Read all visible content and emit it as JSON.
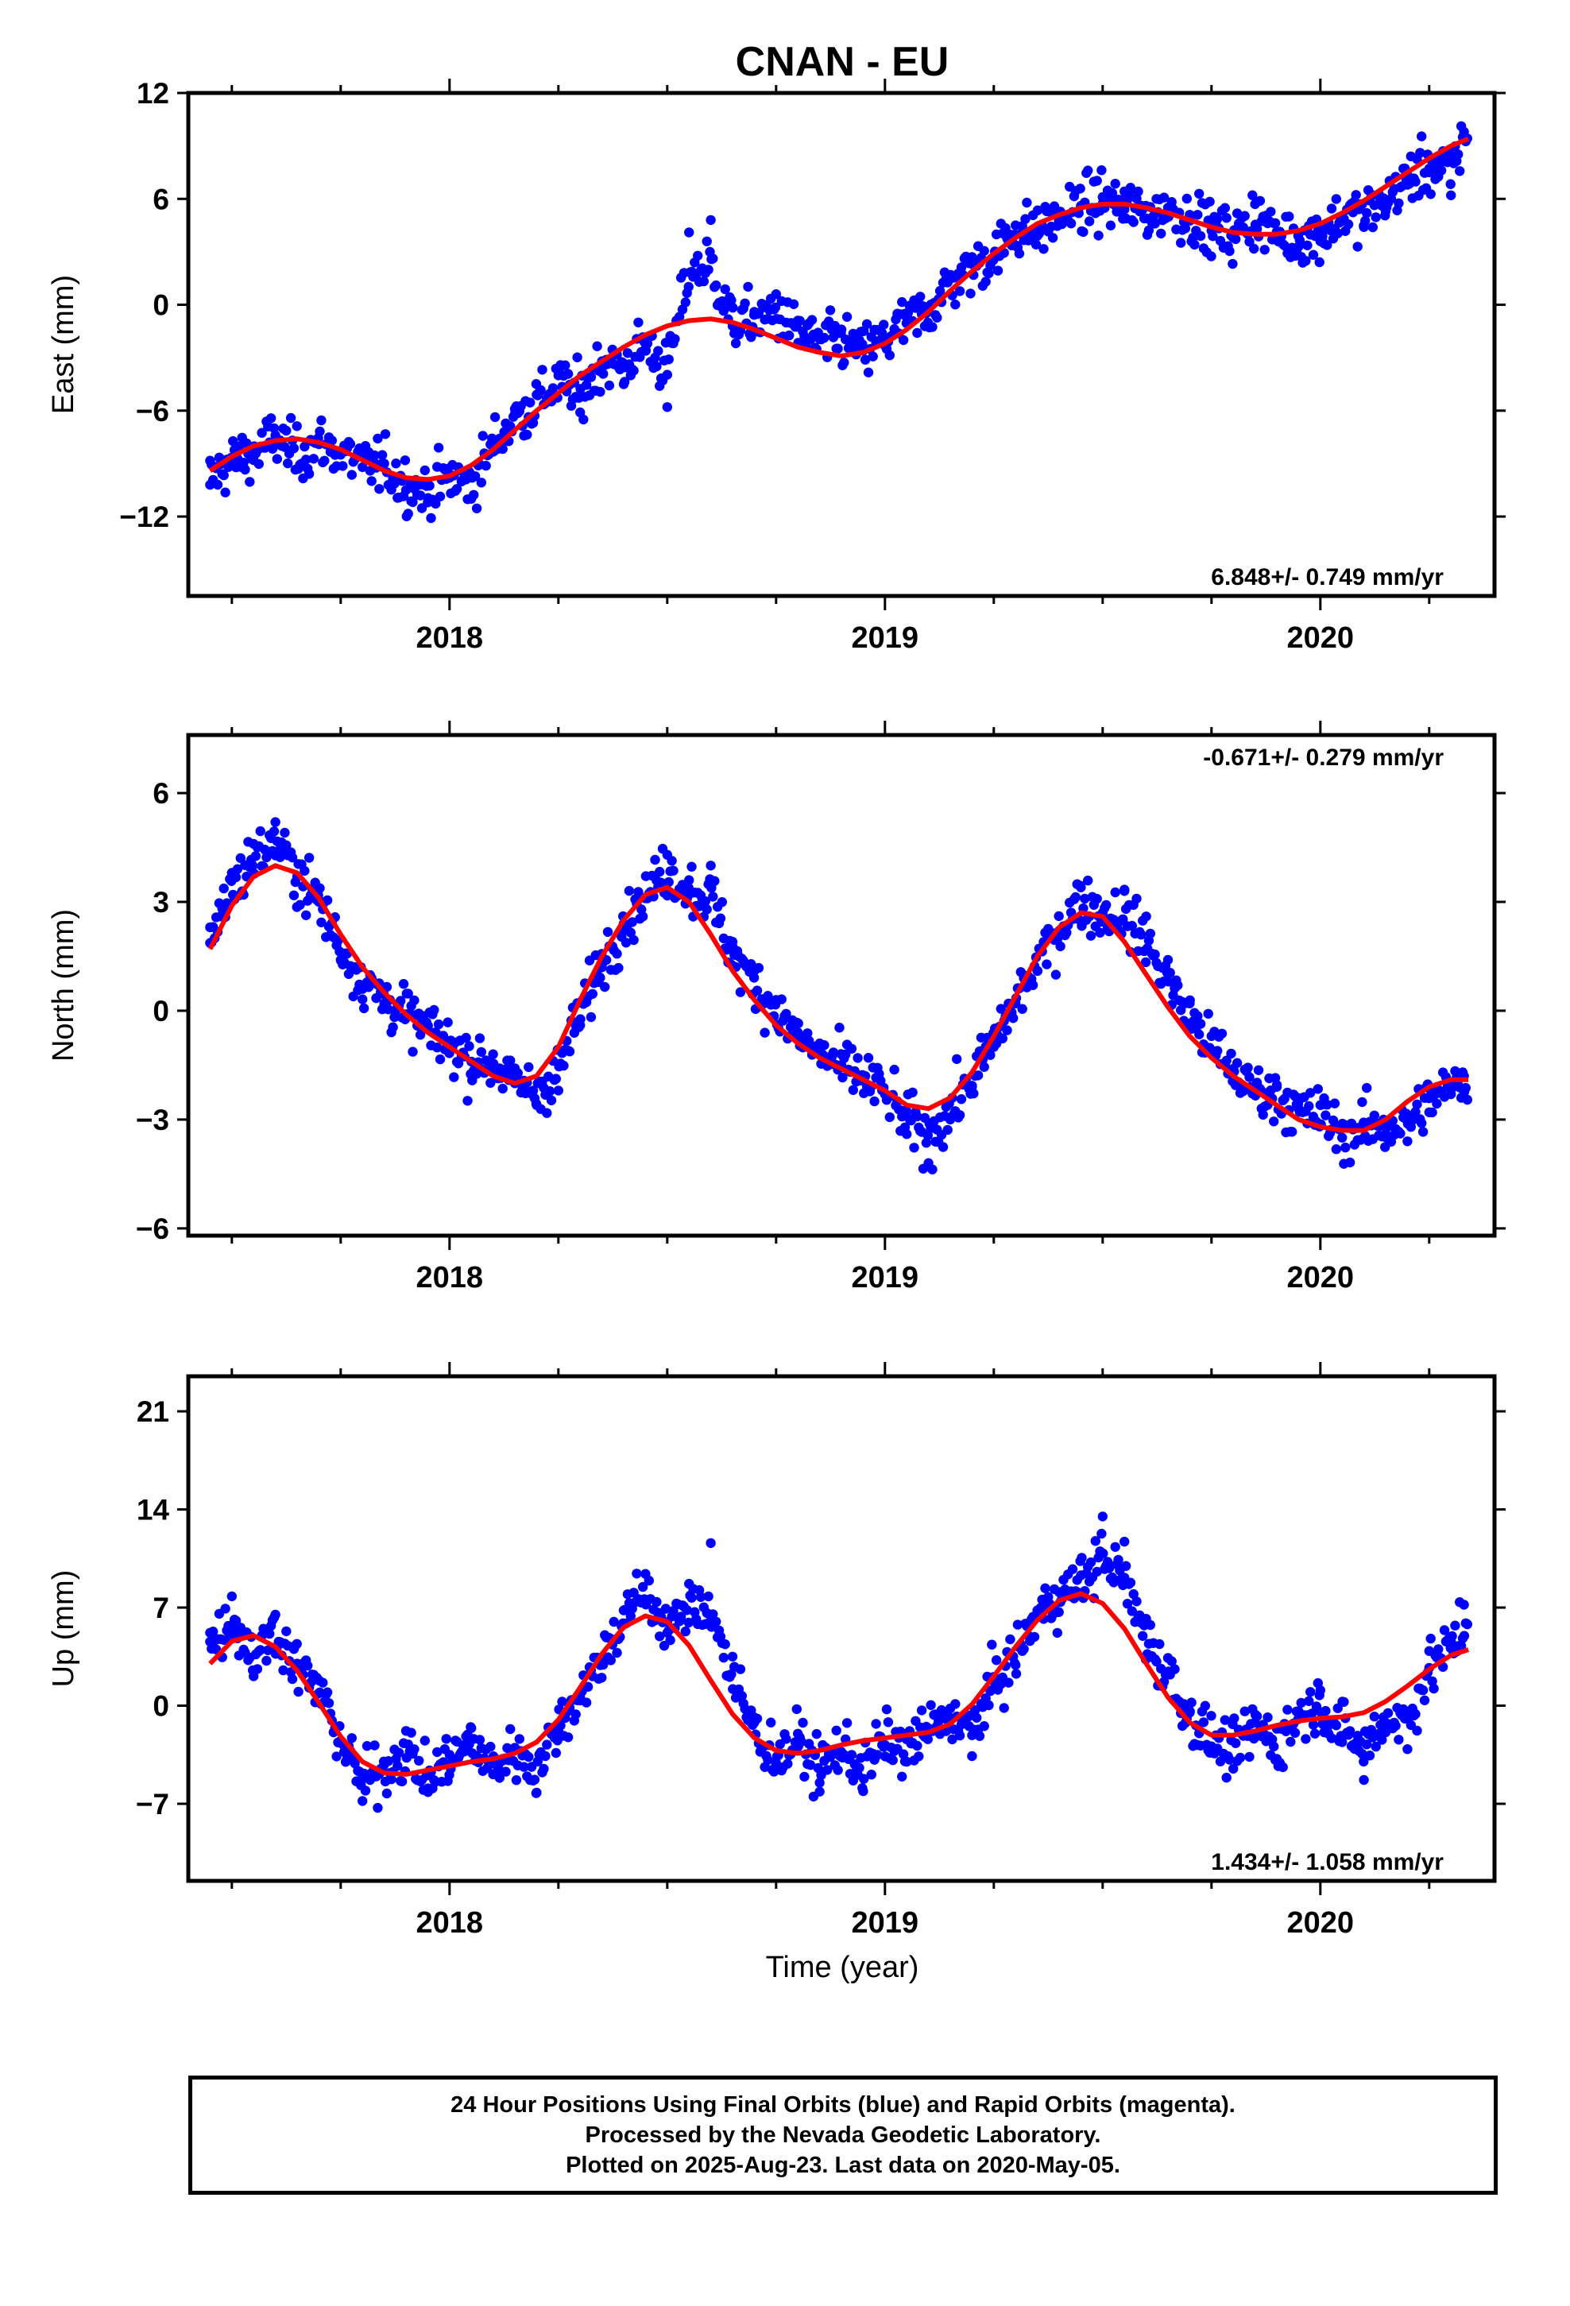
{
  "figure": {
    "title": "CNAN - EU",
    "x_axis_label": "Time (year)"
  },
  "colors": {
    "points": "#0000ff",
    "fit_curve": "#ff0000",
    "frame": "#000000"
  },
  "footer": {
    "line1": "24 Hour Positions Using Final Orbits (blue) and Rapid Orbits (magenta).",
    "line2": "Processed by the Nevada Geodetic Laboratory.",
    "line3": "Plotted on 2025-Aug-23. Last data on 2020-May-05."
  },
  "chart_data": [
    {
      "type": "scatter",
      "ylabel": "East (mm)",
      "xlim": [
        2017.4,
        2020.4
      ],
      "ylim": [
        -16.5,
        12
      ],
      "yticks": [
        12,
        6,
        0,
        -6,
        -12
      ],
      "ytick_labels": [
        "12",
        "6",
        "0",
        "−6",
        "−12"
      ],
      "xticks": [
        2018,
        2019,
        2020
      ],
      "xtick_labels": [
        "2018",
        "2019",
        "2020"
      ],
      "rate": "6.848+/- 0.749 mm/yr",
      "rate_position": "bottom-right",
      "series": [
        {
          "kind": "points",
          "x": [
            2017.45,
            2017.5,
            2017.55,
            2017.6,
            2017.65,
            2017.7,
            2017.75,
            2017.8,
            2017.85,
            2017.9,
            2017.95,
            2018.0,
            2018.05,
            2018.1,
            2018.15,
            2018.2,
            2018.25,
            2018.3,
            2018.35,
            2018.4,
            2018.45,
            2018.5,
            2018.55,
            2018.6,
            2018.65,
            2018.7,
            2018.75,
            2018.8,
            2018.85,
            2018.9,
            2018.95,
            2019.0,
            2019.05,
            2019.1,
            2019.15,
            2019.2,
            2019.25,
            2019.3,
            2019.35,
            2019.4,
            2019.45,
            2019.5,
            2019.55,
            2019.6,
            2019.65,
            2019.7,
            2019.75,
            2019.8,
            2019.85,
            2019.9,
            2019.95,
            2020.0,
            2020.05,
            2020.1,
            2020.15,
            2020.2,
            2020.25,
            2020.3,
            2020.33
          ],
          "y": [
            -10.2,
            -9.1,
            -8.8,
            -7.4,
            -9.3,
            -7.9,
            -8.5,
            -9.2,
            -9.0,
            -10.5,
            -11.2,
            -9.8,
            -11.0,
            -7.8,
            -5.9,
            -5.1,
            -4.0,
            -6.1,
            -3.2,
            -4.5,
            -2.5,
            -5.8,
            4.1,
            4.8,
            -1.2,
            -0.4,
            0.6,
            -0.9,
            -1.8,
            -1.4,
            -2.6,
            -1.9,
            -0.7,
            -0.3,
            1.6,
            2.3,
            2.7,
            4.5,
            3.9,
            4.8,
            5.6,
            6.1,
            5.4,
            4.9,
            5.5,
            5.1,
            4.2,
            3.8,
            5.7,
            4.0,
            3.3,
            3.6,
            4.9,
            4.4,
            5.3,
            6.8,
            7.5,
            6.2,
            9.8
          ]
        },
        {
          "kind": "fit",
          "x": [
            2017.45,
            2017.5,
            2017.55,
            2017.6,
            2017.65,
            2017.7,
            2017.75,
            2017.8,
            2017.85,
            2017.9,
            2017.95,
            2018.0,
            2018.05,
            2018.1,
            2018.15,
            2018.2,
            2018.25,
            2018.3,
            2018.35,
            2018.4,
            2018.45,
            2018.5,
            2018.55,
            2018.6,
            2018.65,
            2018.7,
            2018.75,
            2018.8,
            2018.85,
            2018.9,
            2018.95,
            2019.0,
            2019.05,
            2019.1,
            2019.15,
            2019.2,
            2019.25,
            2019.3,
            2019.35,
            2019.4,
            2019.45,
            2019.5,
            2019.55,
            2019.6,
            2019.65,
            2019.7,
            2019.75,
            2019.8,
            2019.85,
            2019.9,
            2019.95,
            2020.0,
            2020.05,
            2020.1,
            2020.15,
            2020.2,
            2020.25,
            2020.3,
            2020.34
          ],
          "y": [
            -9.4,
            -8.6,
            -8.0,
            -7.7,
            -7.6,
            -7.8,
            -8.2,
            -8.8,
            -9.4,
            -9.8,
            -9.9,
            -9.7,
            -9.1,
            -8.2,
            -7.1,
            -6.0,
            -5.0,
            -4.0,
            -3.2,
            -2.4,
            -1.7,
            -1.2,
            -0.9,
            -0.8,
            -1.0,
            -1.4,
            -1.9,
            -2.4,
            -2.7,
            -2.9,
            -2.7,
            -2.2,
            -1.4,
            -0.4,
            0.8,
            1.9,
            2.9,
            3.8,
            4.6,
            5.1,
            5.5,
            5.7,
            5.7,
            5.5,
            5.2,
            4.8,
            4.4,
            4.1,
            4.0,
            4.0,
            4.2,
            4.6,
            5.2,
            5.9,
            6.7,
            7.5,
            8.3,
            9.0,
            9.4
          ]
        }
      ]
    },
    {
      "type": "scatter",
      "ylabel": "North (mm)",
      "xlim": [
        2017.4,
        2020.4
      ],
      "ylim": [
        -6.2,
        7.6
      ],
      "yticks": [
        6,
        3,
        0,
        -3,
        -6
      ],
      "ytick_labels": [
        "6",
        "3",
        "0",
        "−3",
        "−6"
      ],
      "xticks": [
        2018,
        2019,
        2020
      ],
      "xtick_labels": [
        "2018",
        "2019",
        "2020"
      ],
      "rate": "-0.671+/- 0.279 mm/yr",
      "rate_position": "top-right",
      "series": [
        {
          "kind": "points",
          "x": [
            2017.45,
            2017.5,
            2017.55,
            2017.6,
            2017.65,
            2017.7,
            2017.75,
            2017.8,
            2017.85,
            2017.9,
            2017.95,
            2018.0,
            2018.05,
            2018.1,
            2018.15,
            2018.2,
            2018.25,
            2018.3,
            2018.35,
            2018.4,
            2018.45,
            2018.5,
            2018.55,
            2018.6,
            2018.65,
            2018.7,
            2018.75,
            2018.8,
            2018.85,
            2018.9,
            2018.95,
            2019.0,
            2019.05,
            2019.1,
            2019.15,
            2019.2,
            2019.25,
            2019.3,
            2019.35,
            2019.4,
            2019.45,
            2019.5,
            2019.55,
            2019.6,
            2019.65,
            2019.7,
            2019.75,
            2019.8,
            2019.85,
            2019.9,
            2019.95,
            2020.0,
            2020.05,
            2020.1,
            2020.15,
            2020.2,
            2020.25,
            2020.3,
            2020.33
          ],
          "y": [
            2.3,
            3.8,
            4.6,
            5.2,
            3.7,
            3.0,
            1.4,
            0.6,
            0.2,
            -0.1,
            -0.5,
            -0.9,
            -1.4,
            -1.2,
            -2.0,
            -2.6,
            -2.2,
            -0.4,
            1.2,
            2.4,
            3.1,
            4.3,
            3.6,
            4.0,
            1.9,
            1.1,
            0.3,
            -0.6,
            -1.1,
            -1.5,
            -1.8,
            -2.3,
            -3.4,
            -4.2,
            -3.0,
            -2.1,
            -1.0,
            0.2,
            1.1,
            2.2,
            3.4,
            2.7,
            3.3,
            2.6,
            1.4,
            0.2,
            -0.7,
            -1.6,
            -2.2,
            -2.1,
            -2.7,
            -2.6,
            -3.5,
            -3.2,
            -3.4,
            -3.6,
            -2.8,
            -2.3,
            -1.8
          ]
        },
        {
          "kind": "fit",
          "x": [
            2017.45,
            2017.5,
            2017.55,
            2017.6,
            2017.65,
            2017.7,
            2017.75,
            2017.8,
            2017.85,
            2017.9,
            2017.95,
            2018.0,
            2018.05,
            2018.1,
            2018.15,
            2018.2,
            2018.25,
            2018.3,
            2018.35,
            2018.4,
            2018.45,
            2018.5,
            2018.55,
            2018.6,
            2018.65,
            2018.7,
            2018.75,
            2018.8,
            2018.85,
            2018.9,
            2018.95,
            2019.0,
            2019.05,
            2019.1,
            2019.15,
            2019.2,
            2019.25,
            2019.3,
            2019.35,
            2019.4,
            2019.45,
            2019.5,
            2019.55,
            2019.6,
            2019.65,
            2019.7,
            2019.75,
            2019.8,
            2019.85,
            2019.9,
            2019.95,
            2020.0,
            2020.05,
            2020.1,
            2020.15,
            2020.2,
            2020.25,
            2020.3,
            2020.34
          ],
          "y": [
            1.7,
            2.9,
            3.7,
            4.0,
            3.8,
            3.1,
            2.1,
            1.2,
            0.5,
            -0.1,
            -0.6,
            -1.0,
            -1.4,
            -1.8,
            -2.0,
            -1.8,
            -1.0,
            0.3,
            1.5,
            2.5,
            3.2,
            3.4,
            3.0,
            2.1,
            1.1,
            0.3,
            -0.4,
            -0.9,
            -1.3,
            -1.6,
            -1.9,
            -2.2,
            -2.6,
            -2.7,
            -2.4,
            -1.7,
            -0.7,
            0.4,
            1.5,
            2.3,
            2.7,
            2.6,
            1.9,
            1.0,
            0.1,
            -0.7,
            -1.3,
            -1.8,
            -2.2,
            -2.6,
            -3.0,
            -3.2,
            -3.3,
            -3.3,
            -3.0,
            -2.5,
            -2.1,
            -1.9,
            -1.9
          ]
        }
      ]
    },
    {
      "type": "scatter",
      "ylabel": "Up (mm)",
      "xlabel": "Time (year)",
      "xlim": [
        2017.4,
        2020.4
      ],
      "ylim": [
        -12.5,
        23.5
      ],
      "yticks": [
        21,
        14,
        7,
        0,
        -7
      ],
      "ytick_labels": [
        "21",
        "14",
        "7",
        "0",
        "−7"
      ],
      "xticks": [
        2018,
        2019,
        2020
      ],
      "xtick_labels": [
        "2018",
        "2019",
        "2020"
      ],
      "rate": "1.434+/- 1.058 mm/yr",
      "rate_position": "bottom-right",
      "series": [
        {
          "kind": "points",
          "x": [
            2017.45,
            2017.5,
            2017.55,
            2017.6,
            2017.65,
            2017.7,
            2017.75,
            2017.8,
            2017.85,
            2017.9,
            2017.95,
            2018.0,
            2018.05,
            2018.1,
            2018.15,
            2018.2,
            2018.25,
            2018.3,
            2018.35,
            2018.4,
            2018.45,
            2018.5,
            2018.55,
            2018.6,
            2018.65,
            2018.7,
            2018.75,
            2018.8,
            2018.85,
            2018.9,
            2018.95,
            2019.0,
            2019.05,
            2019.1,
            2019.15,
            2019.2,
            2019.25,
            2019.3,
            2019.35,
            2019.4,
            2019.45,
            2019.5,
            2019.55,
            2019.6,
            2019.65,
            2019.7,
            2019.75,
            2019.8,
            2019.85,
            2019.9,
            2019.95,
            2020.0,
            2020.05,
            2020.1,
            2020.15,
            2020.2,
            2020.25,
            2020.3,
            2020.33
          ],
          "y": [
            5.2,
            7.8,
            2.1,
            6.5,
            3.0,
            1.8,
            -2.5,
            -6.8,
            -4.2,
            -1.8,
            -5.9,
            -3.5,
            -1.6,
            -4.9,
            -3.0,
            -6.2,
            -1.8,
            0.6,
            3.1,
            6.8,
            9.4,
            5.2,
            8.7,
            11.6,
            3.5,
            -1.2,
            -4.1,
            -2.0,
            -5.5,
            -3.3,
            -6.1,
            -2.8,
            -4.0,
            -1.7,
            -0.2,
            -3.6,
            1.2,
            2.9,
            6.8,
            8.1,
            9.3,
            13.5,
            11.7,
            6.2,
            3.4,
            -0.5,
            -2.9,
            -4.5,
            -1.2,
            -3.8,
            -0.4,
            1.1,
            -2.6,
            -5.3,
            -1.9,
            -3.1,
            2.7,
            4.6,
            7.2
          ]
        },
        {
          "kind": "fit",
          "x": [
            2017.45,
            2017.5,
            2017.55,
            2017.6,
            2017.65,
            2017.7,
            2017.75,
            2017.8,
            2017.85,
            2017.9,
            2017.95,
            2018.0,
            2018.05,
            2018.1,
            2018.15,
            2018.2,
            2018.25,
            2018.3,
            2018.35,
            2018.4,
            2018.45,
            2018.5,
            2018.55,
            2018.6,
            2018.65,
            2018.7,
            2018.75,
            2018.8,
            2018.85,
            2018.9,
            2018.95,
            2019.0,
            2019.05,
            2019.1,
            2019.15,
            2019.2,
            2019.25,
            2019.3,
            2019.35,
            2019.4,
            2019.45,
            2019.5,
            2019.55,
            2019.6,
            2019.65,
            2019.7,
            2019.75,
            2019.8,
            2019.85,
            2019.9,
            2019.95,
            2020.0,
            2020.05,
            2020.1,
            2020.15,
            2020.2,
            2020.25,
            2020.3,
            2020.34
          ],
          "y": [
            3.0,
            4.6,
            5.0,
            4.2,
            2.5,
            0.2,
            -2.2,
            -4.0,
            -4.8,
            -4.9,
            -4.6,
            -4.3,
            -4.0,
            -3.8,
            -3.4,
            -2.6,
            -1.0,
            1.3,
            3.7,
            5.6,
            6.4,
            6.0,
            4.3,
            1.8,
            -0.6,
            -2.3,
            -3.2,
            -3.4,
            -3.2,
            -2.8,
            -2.5,
            -2.3,
            -2.1,
            -1.9,
            -1.3,
            0.1,
            2.1,
            4.2,
            6.1,
            7.5,
            8.0,
            7.3,
            5.5,
            3.0,
            0.6,
            -1.2,
            -2.1,
            -2.1,
            -1.8,
            -1.4,
            -1.1,
            -0.9,
            -0.8,
            -0.5,
            0.3,
            1.4,
            2.6,
            3.6,
            4.0
          ]
        }
      ]
    }
  ]
}
